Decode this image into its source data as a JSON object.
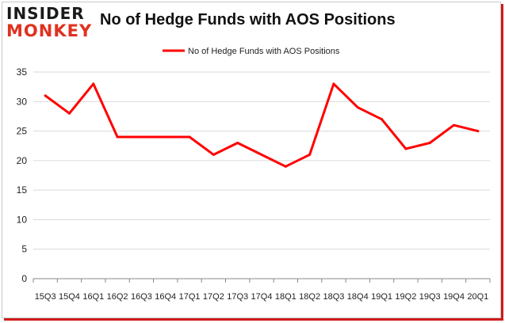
{
  "logo": {
    "line1": "INSIDER",
    "line2": "MONKEY"
  },
  "colors": {
    "line": "#ff0000",
    "accent": "#d21a1a",
    "grid": "#d9d9d9",
    "axis": "#888888"
  },
  "chart_data": {
    "type": "line",
    "title": "No of Hedge Funds with AOS Positions",
    "xlabel": "",
    "ylabel": "",
    "legend": "top-center",
    "grid": true,
    "ylim": [
      0,
      35
    ],
    "yticks": [
      0,
      5,
      10,
      15,
      20,
      25,
      30,
      35
    ],
    "categories": [
      "15Q3",
      "15Q4",
      "16Q1",
      "16Q2",
      "16Q3",
      "16Q4",
      "17Q1",
      "17Q2",
      "17Q3",
      "17Q4",
      "18Q1",
      "18Q2",
      "18Q3",
      "18Q4",
      "19Q1",
      "19Q2",
      "19Q3",
      "19Q4",
      "20Q1"
    ],
    "series": [
      {
        "name": "No of Hedge Funds with AOS Positions",
        "color": "#ff0000",
        "values": [
          31,
          28,
          33,
          24,
          24,
          24,
          24,
          21,
          23,
          21,
          19,
          21,
          33,
          29,
          27,
          22,
          23,
          26,
          25
        ]
      }
    ]
  }
}
